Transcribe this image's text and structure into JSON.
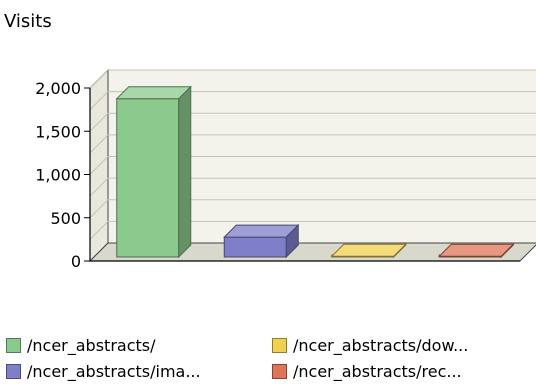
{
  "chart_data": {
    "type": "bar",
    "ylabel": "Visits",
    "ylim": [
      0,
      2000
    ],
    "yticks": [
      0,
      500,
      1000,
      1500,
      2000
    ],
    "ytick_labels": [
      "0",
      "500",
      "1,000",
      "1,500",
      "2,000"
    ],
    "categories": [
      "/ncer_abstracts/",
      "/ncer_abstracts/ima...",
      "/ncer_abstracts/dow...",
      "/ncer_abstracts/rec..."
    ],
    "values": [
      1830,
      230,
      8,
      8
    ],
    "colors": [
      "#8cc98c",
      "#7f7fc9",
      "#f0d050",
      "#e0745a"
    ],
    "grid": true,
    "legend_position": "bottom",
    "style": "3d"
  }
}
